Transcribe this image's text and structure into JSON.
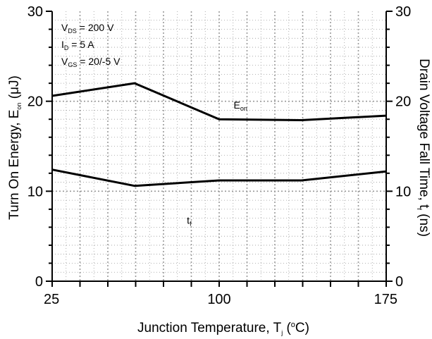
{
  "chart_data": {
    "type": "line",
    "xlabel": "Junction Temperature, Tj (oC)",
    "xlabel_parts": {
      "main": "Junction Temperature, T",
      "sub": "j",
      "open": " (",
      "sup": "o",
      "close": "C)"
    },
    "ylabel_left": "Turn On Energy, Eon (μJ)",
    "ylabel_left_parts": {
      "main": "Turn On Energy, E",
      "sub": "on",
      "close": " (μJ)"
    },
    "ylabel_right": "Drain Voltage Fall Time, tf (ns)",
    "ylabel_right_parts": {
      "main": "Drain Voltage Fall Time, t",
      "sub": "f",
      "close": " (ns)"
    },
    "xlim": [
      25,
      175
    ],
    "ylim_left": [
      0,
      30
    ],
    "ylim_right": [
      0,
      30
    ],
    "x_ticks": [
      25,
      100,
      175
    ],
    "y_ticks_left": [
      0,
      10,
      20,
      30
    ],
    "y_ticks_right": [
      0,
      10,
      20,
      30
    ],
    "grid": true,
    "legend_box": {
      "position": "top-left",
      "lines": [
        {
          "main": "V",
          "sub": "DS",
          "rest": " = 200 V"
        },
        {
          "main": "I",
          "sub": "D",
          "rest": " = 5 A"
        },
        {
          "main": "V",
          "sub": "GS",
          "rest": " = 20/-5 V"
        }
      ]
    },
    "series": [
      {
        "label_main": "E",
        "label_sub": "on",
        "axis": "left",
        "x": [
          25,
          62,
          100,
          137,
          175
        ],
        "y": [
          20.6,
          22.0,
          18.0,
          17.9,
          18.4
        ],
        "label_at": [
          106.5,
          19.2
        ]
      },
      {
        "label_main": "t",
        "label_sub": "f",
        "axis": "right",
        "x": [
          25,
          62,
          100,
          137,
          175
        ],
        "y": [
          12.4,
          10.6,
          11.2,
          11.2,
          12.2
        ],
        "label_at": [
          85.5,
          6.4
        ]
      }
    ],
    "colors": {
      "line": "#000000",
      "grid": "#9a9a9a",
      "axis": "#000000"
    }
  }
}
